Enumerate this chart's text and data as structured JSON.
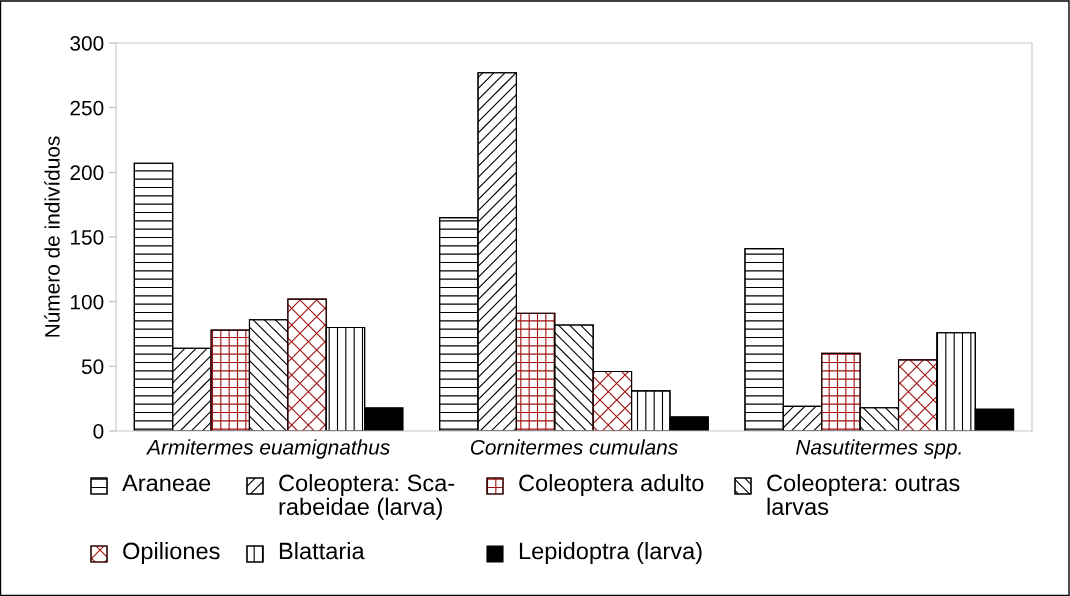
{
  "chart_data": {
    "type": "bar",
    "ylabel": "Número de indivíduos",
    "categories": [
      "Armitermes euamignathus",
      "Cornitermes cumulans",
      "Nasutitermes spp."
    ],
    "series": [
      {
        "name": "Araneae",
        "color": "#000000",
        "values": [
          207,
          165,
          141
        ]
      },
      {
        "name": "Coleoptera: Sca-\nrabeidae (larva)",
        "color": "#000000",
        "values": [
          64,
          277,
          19
        ]
      },
      {
        "name": "Coleoptera adulto",
        "color": "#a01010",
        "values": [
          78,
          91,
          60
        ]
      },
      {
        "name": "Coleoptera: outras\nlarvas",
        "color": "#000000",
        "values": [
          86,
          82,
          18
        ]
      },
      {
        "name": "Opiliones",
        "color": "#a01010",
        "values": [
          102,
          46,
          55
        ]
      },
      {
        "name": "Blattaria",
        "color": "#000000",
        "values": [
          80,
          31,
          76
        ]
      },
      {
        "name": "Lepidoptra (larva)",
        "color": "#000000",
        "values": [
          18,
          11,
          17
        ]
      }
    ],
    "ylim": [
      0,
      300
    ],
    "yticks": [
      0,
      50,
      100,
      150,
      200,
      250,
      300
    ],
    "grid": false,
    "legend": "bottom"
  }
}
